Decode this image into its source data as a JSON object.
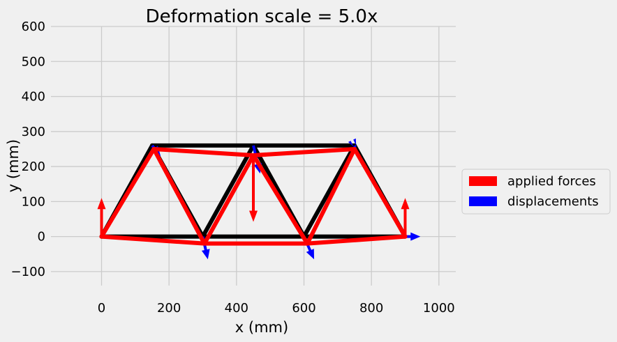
{
  "chart_data": {
    "type": "line",
    "title": "Deformation scale = 5.0x",
    "xlabel": "x (mm)",
    "ylabel": "y (mm)",
    "xlim": [
      -150,
      1050
    ],
    "ylim": [
      -140,
      600
    ],
    "xticks": [
      0,
      200,
      400,
      600,
      800,
      1000
    ],
    "yticks": [
      -100,
      0,
      100,
      200,
      300,
      400,
      500,
      600
    ],
    "grid": true,
    "legend_position": "center-right",
    "legend": [
      {
        "label": "applied forces",
        "color": "#ff0000"
      },
      {
        "label": "displacements",
        "color": "#0000ff"
      }
    ],
    "series": [
      {
        "color": "#000000",
        "role": "undeformed truss",
        "segments": [
          [
            [
              0,
              0
            ],
            [
              300,
              0
            ]
          ],
          [
            [
              300,
              0
            ],
            [
              600,
              0
            ]
          ],
          [
            [
              600,
              0
            ],
            [
              900,
              0
            ]
          ],
          [
            [
              150,
              260
            ],
            [
              450,
              260
            ]
          ],
          [
            [
              450,
              260
            ],
            [
              750,
              260
            ]
          ],
          [
            [
              0,
              0
            ],
            [
              150,
              260
            ]
          ],
          [
            [
              150,
              260
            ],
            [
              300,
              0
            ]
          ],
          [
            [
              300,
              0
            ],
            [
              450,
              260
            ]
          ],
          [
            [
              450,
              260
            ],
            [
              600,
              0
            ]
          ],
          [
            [
              600,
              0
            ],
            [
              750,
              260
            ]
          ],
          [
            [
              750,
              260
            ],
            [
              900,
              0
            ]
          ]
        ]
      },
      {
        "color": "#ff0000",
        "role": "deformed truss",
        "segments": [
          [
            [
              0,
              0
            ],
            [
              305,
              -20
            ]
          ],
          [
            [
              305,
              -20
            ],
            [
              610,
              -20
            ]
          ],
          [
            [
              610,
              -20
            ],
            [
              900,
              0
            ]
          ],
          [
            [
              155,
              250
            ],
            [
              450,
              232
            ]
          ],
          [
            [
              450,
              232
            ],
            [
              750,
              250
            ]
          ],
          [
            [
              0,
              0
            ],
            [
              155,
              250
            ]
          ],
          [
            [
              155,
              250
            ],
            [
              305,
              -20
            ]
          ],
          [
            [
              305,
              -20
            ],
            [
              450,
              232
            ]
          ],
          [
            [
              450,
              232
            ],
            [
              610,
              -20
            ]
          ],
          [
            [
              610,
              -20
            ],
            [
              750,
              250
            ]
          ],
          [
            [
              750,
              250
            ],
            [
              900,
              0
            ]
          ]
        ]
      }
    ],
    "applied_forces": [
      {
        "x": 0,
        "y": 0,
        "dx": 0,
        "dy": 110
      },
      {
        "x": 450,
        "y": 232,
        "dx": 0,
        "dy": -190
      },
      {
        "x": 900,
        "y": 0,
        "dx": 0,
        "dy": 110
      }
    ],
    "displacements": [
      {
        "x": 150,
        "y": 260,
        "dx": 25,
        "dy": -30
      },
      {
        "x": 300,
        "y": 0,
        "dx": 15,
        "dy": -65
      },
      {
        "x": 450,
        "y": 260,
        "dx": 20,
        "dy": -80
      },
      {
        "x": 600,
        "y": 0,
        "dx": 30,
        "dy": -65
      },
      {
        "x": 750,
        "y": 260,
        "dx": 5,
        "dy": -10
      },
      {
        "x": 900,
        "y": 0,
        "dx": 45,
        "dy": 0
      }
    ]
  }
}
